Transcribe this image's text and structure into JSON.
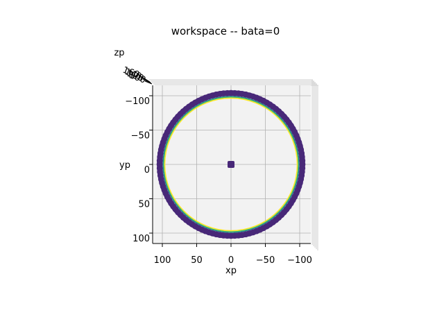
{
  "chart_data": {
    "type": "scatter",
    "title": "workspace -- bata=0",
    "xlabel": "xp",
    "ylabel": "yp",
    "zlabel": "zp",
    "view": "top-down 3D projection",
    "xlim": [
      115,
      -115
    ],
    "ylim": [
      -115,
      115
    ],
    "x_ticks": [
      "100",
      "50",
      "0",
      "−50",
      "−100"
    ],
    "x_tick_values": [
      100,
      50,
      0,
      -50,
      -100
    ],
    "y_ticks": [
      "−100",
      "−50",
      "0",
      "50",
      "100"
    ],
    "y_tick_values": [
      -100,
      -50,
      0,
      50,
      100
    ],
    "z_ticks_overlapping": [
      "160",
      "140",
      "120",
      "100"
    ],
    "grid": true,
    "pane_color": "#f2f2f2",
    "colormap": "viridis",
    "series": [
      {
        "shape": "ring",
        "radius_outer": 108,
        "radius_inner": 100,
        "color": "#482878"
      },
      {
        "shape": "ring",
        "radius": 99,
        "color": "#31688e"
      },
      {
        "shape": "ring",
        "radius": 98,
        "color": "#35b779"
      },
      {
        "shape": "ring",
        "radius": 96.5,
        "color": "#fde725"
      },
      {
        "shape": "point",
        "x": 0,
        "y": 0,
        "color": "#482878"
      }
    ]
  }
}
